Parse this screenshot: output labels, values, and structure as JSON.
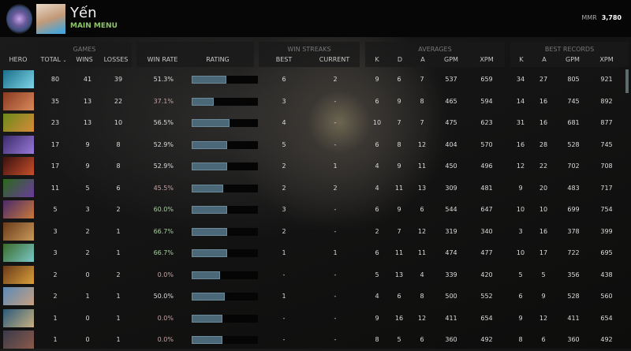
{
  "header": {
    "player_name": "Yến",
    "menu_label": "MAIN MENU",
    "mmr_label": "MMR",
    "mmr_value": "3,780"
  },
  "groups": {
    "games": "GAMES",
    "win_streaks": "WIN STREAKS",
    "averages": "AVERAGES",
    "best_records": "BEST RECORDS"
  },
  "columns": {
    "hero": "HERO",
    "total": "TOTAL",
    "wins": "WINS",
    "losses": "LOSSES",
    "win_rate": "WIN RATE",
    "rating": "RATING",
    "best": "BEST",
    "current": "CURRENT",
    "k": "K",
    "d": "D",
    "a": "A",
    "gpm": "GPM",
    "xpm": "XPM",
    "br_k": "K",
    "br_a": "A",
    "br_gpm": "GPM",
    "br_xpm": "XPM"
  },
  "sort_icon": "chevron-down-icon",
  "colors": {
    "win_rate_low": "#c9a3a3",
    "win_rate_high": "#a7cfa0",
    "win_rate_normal": "#dddddd",
    "rating_bar": "#4a6878",
    "menu": "#8fc46a"
  },
  "rows": [
    {
      "hero_colors": [
        "#1a6e8a",
        "#7fd6e8"
      ],
      "total": "80",
      "wins": "41",
      "losses": "39",
      "win_rate": "51.3%",
      "rating": 0.52,
      "best": "6",
      "current": "2",
      "k": "9",
      "d": "6",
      "a": "7",
      "gpm": "537",
      "xpm": "659",
      "br_k": "34",
      "br_a": "27",
      "br_gpm": "805",
      "br_xpm": "921"
    },
    {
      "hero_colors": [
        "#8a3a22",
        "#d88a5a"
      ],
      "total": "35",
      "wins": "13",
      "losses": "22",
      "win_rate": "37.1%",
      "rating": 0.33,
      "best": "3",
      "current": "-",
      "k": "6",
      "d": "9",
      "a": "8",
      "gpm": "465",
      "xpm": "594",
      "br_k": "14",
      "br_a": "16",
      "br_gpm": "745",
      "br_xpm": "892"
    },
    {
      "hero_colors": [
        "#6a8a1a",
        "#d88a3a"
      ],
      "total": "23",
      "wins": "13",
      "losses": "10",
      "win_rate": "56.5%",
      "rating": 0.57,
      "best": "4",
      "current": "-",
      "k": "10",
      "d": "7",
      "a": "7",
      "gpm": "475",
      "xpm": "623",
      "br_k": "31",
      "br_a": "16",
      "br_gpm": "681",
      "br_xpm": "877"
    },
    {
      "hero_colors": [
        "#3a2a6a",
        "#9a7ad8"
      ],
      "total": "17",
      "wins": "9",
      "losses": "8",
      "win_rate": "52.9%",
      "rating": 0.53,
      "best": "5",
      "current": "-",
      "k": "6",
      "d": "8",
      "a": "12",
      "gpm": "404",
      "xpm": "570",
      "br_k": "16",
      "br_a": "28",
      "br_gpm": "528",
      "br_xpm": "745"
    },
    {
      "hero_colors": [
        "#3a1010",
        "#c8502a"
      ],
      "total": "17",
      "wins": "9",
      "losses": "8",
      "win_rate": "52.9%",
      "rating": 0.53,
      "best": "2",
      "current": "1",
      "k": "4",
      "d": "9",
      "a": "11",
      "gpm": "450",
      "xpm": "496",
      "br_k": "12",
      "br_a": "22",
      "br_gpm": "702",
      "br_xpm": "708"
    },
    {
      "hero_colors": [
        "#2a6a1a",
        "#6a3a9a"
      ],
      "total": "11",
      "wins": "5",
      "losses": "6",
      "win_rate": "45.5%",
      "rating": 0.48,
      "best": "2",
      "current": "2",
      "k": "4",
      "d": "11",
      "a": "13",
      "gpm": "309",
      "xpm": "481",
      "br_k": "9",
      "br_a": "20",
      "br_gpm": "483",
      "br_xpm": "717"
    },
    {
      "hero_colors": [
        "#4a2a6a",
        "#c8783a"
      ],
      "total": "5",
      "wins": "3",
      "losses": "2",
      "win_rate": "60.0%",
      "rating": 0.54,
      "best": "3",
      "current": "-",
      "k": "6",
      "d": "9",
      "a": "6",
      "gpm": "544",
      "xpm": "647",
      "br_k": "10",
      "br_a": "10",
      "br_gpm": "699",
      "br_xpm": "754"
    },
    {
      "hero_colors": [
        "#6a3a1a",
        "#c89a5a"
      ],
      "total": "3",
      "wins": "2",
      "losses": "1",
      "win_rate": "66.7%",
      "rating": 0.54,
      "best": "2",
      "current": "-",
      "k": "2",
      "d": "7",
      "a": "12",
      "gpm": "319",
      "xpm": "340",
      "br_k": "3",
      "br_a": "16",
      "br_gpm": "378",
      "br_xpm": "399"
    },
    {
      "hero_colors": [
        "#3a6a2a",
        "#7ac8c8"
      ],
      "total": "3",
      "wins": "2",
      "losses": "1",
      "win_rate": "66.7%",
      "rating": 0.54,
      "best": "1",
      "current": "1",
      "k": "6",
      "d": "11",
      "a": "11",
      "gpm": "474",
      "xpm": "477",
      "br_k": "10",
      "br_a": "17",
      "br_gpm": "722",
      "br_xpm": "695"
    },
    {
      "hero_colors": [
        "#6a3a1a",
        "#d8a03a"
      ],
      "total": "2",
      "wins": "0",
      "losses": "2",
      "win_rate": "0.0%",
      "rating": 0.43,
      "best": "-",
      "current": "-",
      "k": "5",
      "d": "13",
      "a": "4",
      "gpm": "339",
      "xpm": "420",
      "br_k": "5",
      "br_a": "5",
      "br_gpm": "356",
      "br_xpm": "438"
    },
    {
      "hero_colors": [
        "#5a8ab8",
        "#c8a080"
      ],
      "total": "2",
      "wins": "1",
      "losses": "1",
      "win_rate": "50.0%",
      "rating": 0.5,
      "best": "1",
      "current": "-",
      "k": "4",
      "d": "6",
      "a": "8",
      "gpm": "500",
      "xpm": "552",
      "br_k": "6",
      "br_a": "9",
      "br_gpm": "528",
      "br_xpm": "560"
    },
    {
      "hero_colors": [
        "#2a5a7a",
        "#c8b080"
      ],
      "total": "1",
      "wins": "0",
      "losses": "1",
      "win_rate": "0.0%",
      "rating": 0.46,
      "best": "-",
      "current": "-",
      "k": "9",
      "d": "16",
      "a": "12",
      "gpm": "411",
      "xpm": "654",
      "br_k": "9",
      "br_a": "12",
      "br_gpm": "411",
      "br_xpm": "654"
    },
    {
      "hero_colors": [
        "#3a3a4a",
        "#8a5a4a"
      ],
      "total": "1",
      "wins": "0",
      "losses": "1",
      "win_rate": "0.0%",
      "rating": 0.46,
      "best": "-",
      "current": "-",
      "k": "8",
      "d": "5",
      "a": "6",
      "gpm": "360",
      "xpm": "492",
      "br_k": "8",
      "br_a": "6",
      "br_gpm": "360",
      "br_xpm": "492"
    }
  ]
}
